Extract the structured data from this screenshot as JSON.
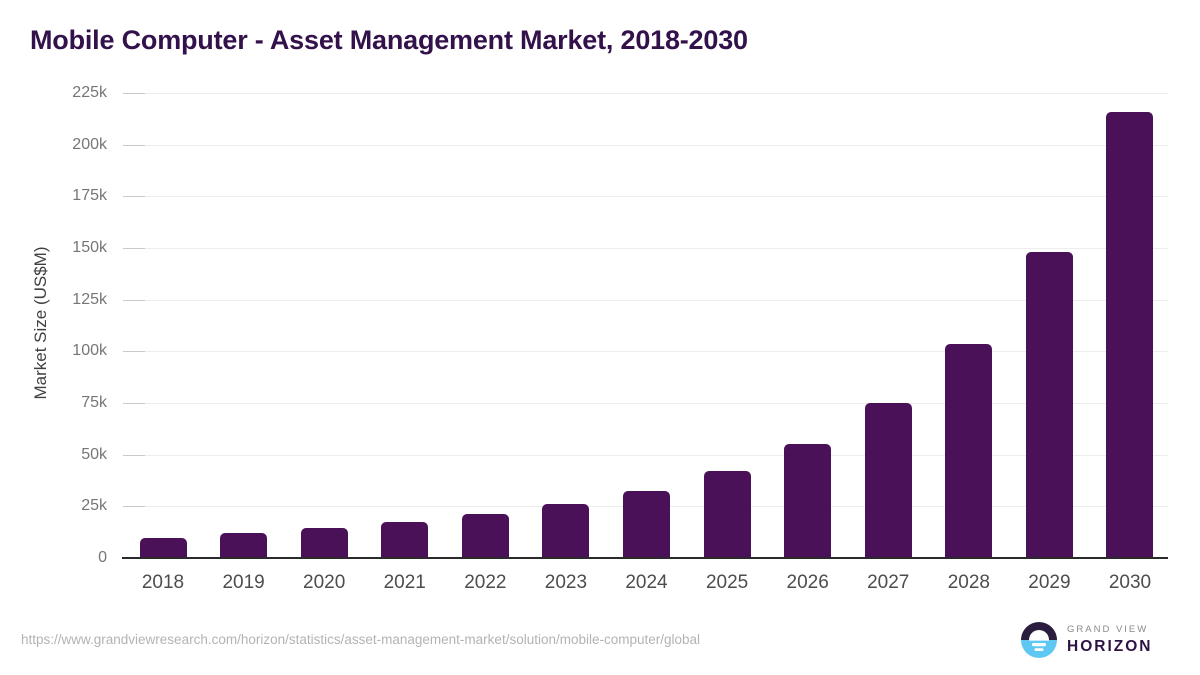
{
  "title": "Mobile Computer - Asset Management Market, 2018-2030",
  "chart_data": {
    "type": "bar",
    "title": "Mobile Computer - Asset Management Market, 2018-2030",
    "categories": [
      "2018",
      "2019",
      "2020",
      "2021",
      "2022",
      "2023",
      "2024",
      "2025",
      "2026",
      "2027",
      "2028",
      "2029",
      "2030"
    ],
    "values": [
      9500,
      12100,
      14400,
      17300,
      21100,
      26000,
      32500,
      42000,
      55000,
      74800,
      103400,
      148200,
      215700
    ],
    "xlabel": "",
    "ylabel": "Market Size (US$M)",
    "ylim": [
      0,
      225000
    ],
    "ytick_step": 25000,
    "ytick_labels": [
      "0",
      "25k",
      "50k",
      "75k",
      "100k",
      "125k",
      "150k",
      "175k",
      "200k",
      "225k"
    ],
    "grid": true,
    "legend": false,
    "bar_color": "#4a1158"
  },
  "footer": {
    "source_url": "https://www.grandviewresearch.com/horizon/statistics/asset-management-market/solution/mobile-computer/global",
    "logo": {
      "line1": "GRAND VIEW",
      "line2": "HORIZON",
      "mark_icon": "sunrise-horizon-icon",
      "dark_color": "#2a1d3e",
      "blue_color": "#5ec8f2"
    }
  },
  "colors": {
    "title_text": "#33124b",
    "bar": "#4a1158",
    "gridline": "#ededed",
    "tick": "#c9c9c9",
    "axis_line": "#2a2a2a",
    "y_tick_text": "#767676",
    "x_tick_text": "#4d4d4d",
    "axis_title_text": "#404040",
    "source_text": "#b3b3b3"
  }
}
